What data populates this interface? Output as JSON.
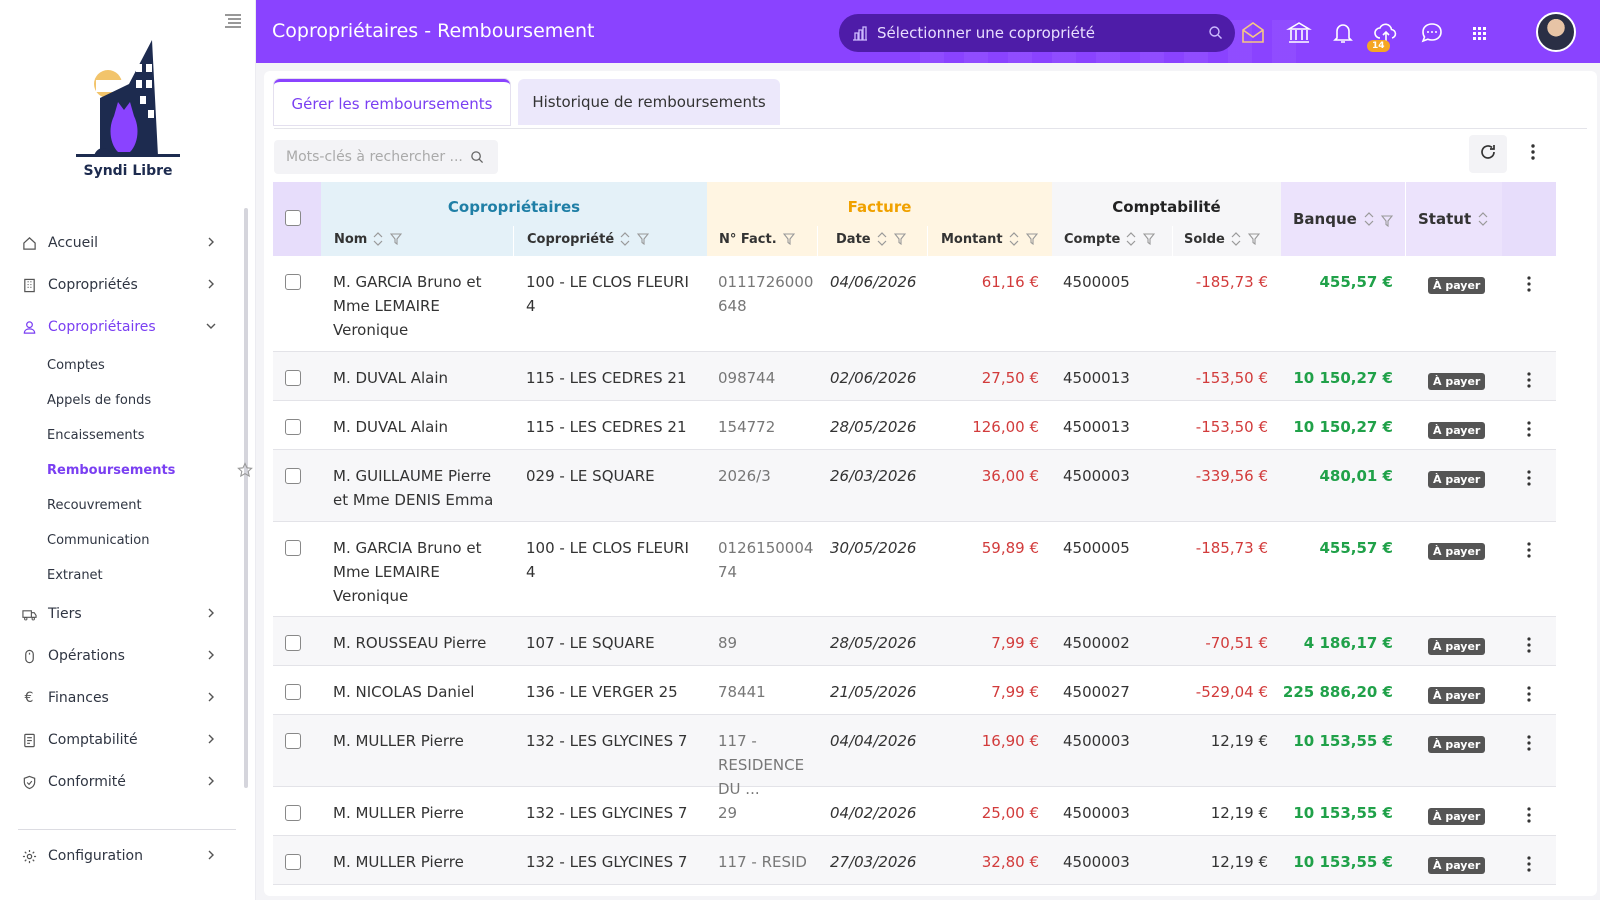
{
  "app": {
    "brand": "Syndi Libre"
  },
  "header": {
    "title": "Copropriétaires - Remboursement",
    "select_placeholder": "Sélectionner une copropriété",
    "notifications_count": "14"
  },
  "sidebar": {
    "items": [
      {
        "label": "Accueil",
        "icon": "home-icon"
      },
      {
        "label": "Copropriétés",
        "icon": "building-icon"
      },
      {
        "label": "Copropriétaires",
        "icon": "user-icon",
        "active": true
      },
      {
        "label": "Tiers",
        "icon": "truck-icon"
      },
      {
        "label": "Opérations",
        "icon": "mouse-icon"
      },
      {
        "label": "Finances",
        "icon": "euro-icon"
      },
      {
        "label": "Comptabilité",
        "icon": "ledger-icon"
      },
      {
        "label": "Conformité",
        "icon": "shield-icon"
      }
    ],
    "subitems": [
      {
        "label": "Comptes"
      },
      {
        "label": "Appels de fonds"
      },
      {
        "label": "Encaissements"
      },
      {
        "label": "Remboursements",
        "active": true
      },
      {
        "label": "Recouvrement"
      },
      {
        "label": "Communication"
      },
      {
        "label": "Extranet"
      }
    ],
    "config_label": "Configuration"
  },
  "tabs": {
    "manage": "Gérer les remboursements",
    "history": "Historique de remboursements"
  },
  "search": {
    "placeholder": "Mots-clés à rechercher ..."
  },
  "table": {
    "groups": {
      "copro": "Copropriétaires",
      "facture": "Facture",
      "compta": "Comptabilité"
    },
    "columns": {
      "nom": "Nom",
      "copropriete": "Copropriété",
      "no_fact": "N° Fact.",
      "date": "Date",
      "montant": "Montant",
      "compte": "Compte",
      "solde": "Solde",
      "banque": "Banque",
      "statut": "Statut"
    },
    "rows": [
      {
        "nom": "M. GARCIA Bruno et Mme LEMAIRE Veronique",
        "copro": "100 - LE CLOS FLEURI 4",
        "fact": "0111726000648",
        "date": "04/06/2026",
        "montant": "61,16 €",
        "compte": "4500005",
        "solde": "-185,73 €",
        "banque": "455,57 €",
        "statut": "À payer"
      },
      {
        "nom": "M. DUVAL Alain",
        "copro": "115 - LES CEDRES 21",
        "fact": "098744",
        "date": "02/06/2026",
        "montant": "27,50 €",
        "compte": "4500013",
        "solde": "-153,50 €",
        "banque": "10 150,27 €",
        "statut": "À payer"
      },
      {
        "nom": "M. DUVAL Alain",
        "copro": "115 - LES CEDRES 21",
        "fact": "154772",
        "date": "28/05/2026",
        "montant": "126,00 €",
        "compte": "4500013",
        "solde": "-153,50 €",
        "banque": "10 150,27 €",
        "statut": "À payer"
      },
      {
        "nom": "M. GUILLAUME Pierre et Mme DENIS Emma",
        "copro": "029 - LE SQUARE",
        "fact": "2026/3",
        "date": "26/03/2026",
        "montant": "36,00 €",
        "compte": "4500003",
        "solde": "-339,56 €",
        "banque": "480,01 €",
        "statut": "À payer"
      },
      {
        "nom": "M. GARCIA Bruno et Mme LEMAIRE Veronique",
        "copro": "100 - LE CLOS FLEURI 4",
        "fact": "012615000474",
        "date": "30/05/2026",
        "montant": "59,89 €",
        "compte": "4500005",
        "solde": "-185,73 €",
        "banque": "455,57 €",
        "statut": "À payer"
      },
      {
        "nom": "M. ROUSSEAU Pierre",
        "copro": "107 - LE SQUARE",
        "fact": "89",
        "date": "28/05/2026",
        "montant": "7,99 €",
        "compte": "4500002",
        "solde": "-70,51 €",
        "banque": "4 186,17 €",
        "statut": "À payer"
      },
      {
        "nom": "M. NICOLAS Daniel",
        "copro": "136 - LE VERGER 25",
        "fact": "78441",
        "date": "21/05/2026",
        "montant": "7,99 €",
        "compte": "4500027",
        "solde": "-529,04 €",
        "banque": "225 886,20 €",
        "statut": "À payer"
      },
      {
        "nom": "M. MULLER Pierre",
        "copro": "132 - LES GLYCINES 7",
        "fact": "117 - RESIDENCE DU ...",
        "date": "04/04/2026",
        "montant": "16,90 €",
        "compte": "4500003",
        "solde": "12,19 €",
        "banque": "10 153,55 €",
        "statut": "À payer"
      },
      {
        "nom": "M. MULLER Pierre",
        "copro": "132 - LES GLYCINES 7",
        "fact": "29",
        "date": "04/02/2026",
        "montant": "25,00 €",
        "compte": "4500003",
        "solde": "12,19 €",
        "banque": "10 153,55 €",
        "statut": "À payer"
      },
      {
        "nom": "M. MULLER Pierre",
        "copro": "132 - LES GLYCINES 7",
        "fact": "117 - RESID",
        "date": "27/03/2026",
        "montant": "32,80 €",
        "compte": "4500003",
        "solde": "12,19 €",
        "banque": "10 153,55 €",
        "statut": "À payer"
      }
    ]
  },
  "colors": {
    "primary": "#8a43ff",
    "negative": "#d23b3b",
    "positive": "#20a149"
  }
}
